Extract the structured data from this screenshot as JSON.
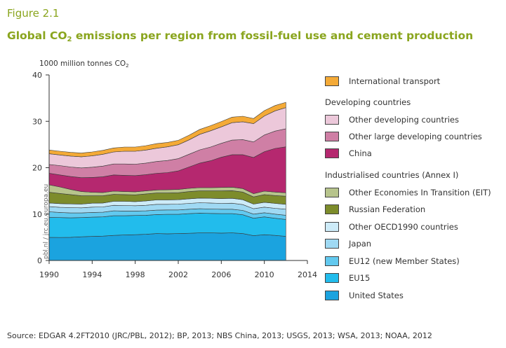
{
  "figure_label": "Figure 2.1",
  "title_pre": "Global CO",
  "title_sub": "2",
  "title_post": " emissions per region from fossil-fuel use and cement production",
  "unit_pre": "1000 million tonnes CO",
  "unit_sub": "2",
  "watermark": "pbl.nl / jrc.eu.europa.eu",
  "source": "Source: EDGAR 4.2FT2010 (JRC/PBL, 2012); BP, 2013; NBS China, 2013; USGS, 2013; WSA, 2013; NOAA, 2012",
  "legend": {
    "international": "International transport",
    "developing_heading": "Developing countries",
    "other_developing": "Other developing countries",
    "other_large": "Other large developing countries",
    "china": "China",
    "industrialised_heading": "Industrialised countries (Annex I)",
    "eit": "Other Economies In Transition (EIT)",
    "russia": "Russian Federation",
    "oecd": "Other OECD1990 countries",
    "japan": "Japan",
    "eu12": "EU12 (new Member States)",
    "eu15": "EU15",
    "us": "United States"
  },
  "colors": {
    "us": "#1ba3df",
    "eu15": "#22bcec",
    "eu12": "#62c9ef",
    "japan": "#9fd9f3",
    "oecd": "#cdebf8",
    "russia": "#7d8c2b",
    "eit": "#b7c48c",
    "china": "#b5286f",
    "other_large": "#cf7fa5",
    "other_developing": "#ecc8da",
    "international": "#f4aa37"
  },
  "chart_data": {
    "type": "area",
    "stacked": true,
    "x": [
      1990,
      1991,
      1992,
      1993,
      1994,
      1995,
      1996,
      1997,
      1998,
      1999,
      2000,
      2001,
      2002,
      2003,
      2004,
      2005,
      2006,
      2007,
      2008,
      2009,
      2010,
      2011,
      2012
    ],
    "xticks": [
      1990,
      1994,
      1998,
      2002,
      2006,
      2010,
      2014
    ],
    "xlim": [
      1990,
      2014
    ],
    "ylim": [
      0,
      40
    ],
    "yticks": [
      0,
      10,
      20,
      30,
      40
    ],
    "ylabel": "1000 million tonnes CO2",
    "grid": false,
    "series": [
      {
        "name": "United States",
        "key": "us",
        "values": [
          5.0,
          4.95,
          5.0,
          5.1,
          5.2,
          5.25,
          5.4,
          5.5,
          5.55,
          5.65,
          5.8,
          5.75,
          5.8,
          5.85,
          5.95,
          5.95,
          5.9,
          5.95,
          5.8,
          5.35,
          5.55,
          5.4,
          5.2
        ]
      },
      {
        "name": "EU15",
        "key": "eu15",
        "values": [
          4.3,
          4.3,
          4.2,
          4.15,
          4.15,
          4.15,
          4.25,
          4.15,
          4.15,
          4.1,
          4.1,
          4.2,
          4.15,
          4.25,
          4.25,
          4.2,
          4.2,
          4.15,
          4.05,
          3.75,
          3.85,
          3.7,
          3.65
        ]
      },
      {
        "name": "EU12 (new Member States)",
        "key": "eu12",
        "values": [
          1.2,
          1.1,
          1.05,
          1.0,
          1.0,
          1.0,
          1.05,
          1.0,
          0.95,
          0.95,
          0.95,
          0.95,
          0.95,
          0.95,
          0.95,
          0.95,
          0.95,
          0.95,
          0.95,
          0.9,
          0.9,
          0.9,
          0.9
        ]
      },
      {
        "name": "Japan",
        "key": "japan",
        "values": [
          1.1,
          1.1,
          1.15,
          1.1,
          1.15,
          1.15,
          1.2,
          1.2,
          1.15,
          1.2,
          1.25,
          1.2,
          1.25,
          1.25,
          1.3,
          1.3,
          1.25,
          1.3,
          1.25,
          1.15,
          1.2,
          1.25,
          1.3
        ]
      },
      {
        "name": "Other OECD1990 countries",
        "key": "oecd",
        "values": [
          0.8,
          0.8,
          0.8,
          0.8,
          0.85,
          0.85,
          0.85,
          0.9,
          0.9,
          0.95,
          0.95,
          0.95,
          0.95,
          1.0,
          1.0,
          1.0,
          1.05,
          1.05,
          1.05,
          1.0,
          1.05,
          1.05,
          1.05
        ]
      },
      {
        "name": "Russian Federation",
        "key": "russia",
        "values": [
          2.3,
          2.2,
          2.0,
          1.8,
          1.6,
          1.55,
          1.5,
          1.45,
          1.45,
          1.5,
          1.5,
          1.5,
          1.5,
          1.55,
          1.55,
          1.6,
          1.65,
          1.65,
          1.65,
          1.55,
          1.65,
          1.7,
          1.75
        ]
      },
      {
        "name": "Other Economies In Transition (EIT)",
        "key": "eit",
        "values": [
          1.6,
          1.4,
          1.1,
          0.9,
          0.75,
          0.7,
          0.7,
          0.65,
          0.65,
          0.65,
          0.65,
          0.7,
          0.7,
          0.7,
          0.7,
          0.7,
          0.75,
          0.75,
          0.75,
          0.7,
          0.75,
          0.75,
          0.75
        ]
      },
      {
        "name": "China",
        "key": "china",
        "values": [
          2.5,
          2.6,
          2.8,
          3.0,
          3.2,
          3.4,
          3.5,
          3.5,
          3.5,
          3.5,
          3.6,
          3.7,
          4.0,
          4.6,
          5.3,
          5.8,
          6.5,
          7.0,
          7.3,
          7.8,
          8.5,
          9.4,
          9.9
        ]
      },
      {
        "name": "Other large developing countries",
        "key": "other_large",
        "values": [
          1.9,
          2.0,
          2.05,
          2.1,
          2.2,
          2.3,
          2.35,
          2.45,
          2.45,
          2.5,
          2.55,
          2.6,
          2.65,
          2.75,
          2.85,
          2.95,
          3.0,
          3.15,
          3.25,
          3.35,
          3.6,
          3.75,
          3.9
        ]
      },
      {
        "name": "Other developing countries",
        "key": "other_developing",
        "values": [
          2.3,
          2.3,
          2.35,
          2.4,
          2.45,
          2.55,
          2.6,
          2.75,
          2.8,
          2.8,
          2.85,
          2.95,
          3.0,
          3.1,
          3.35,
          3.5,
          3.55,
          3.75,
          3.85,
          3.95,
          4.1,
          4.35,
          4.55
        ]
      },
      {
        "name": "International transport",
        "key": "international",
        "values": [
          0.8,
          0.8,
          0.8,
          0.8,
          0.85,
          0.85,
          0.85,
          0.9,
          0.9,
          0.95,
          1.0,
          0.95,
          0.95,
          1.0,
          1.05,
          1.1,
          1.15,
          1.2,
          1.2,
          1.1,
          1.15,
          1.15,
          1.15
        ]
      }
    ]
  }
}
